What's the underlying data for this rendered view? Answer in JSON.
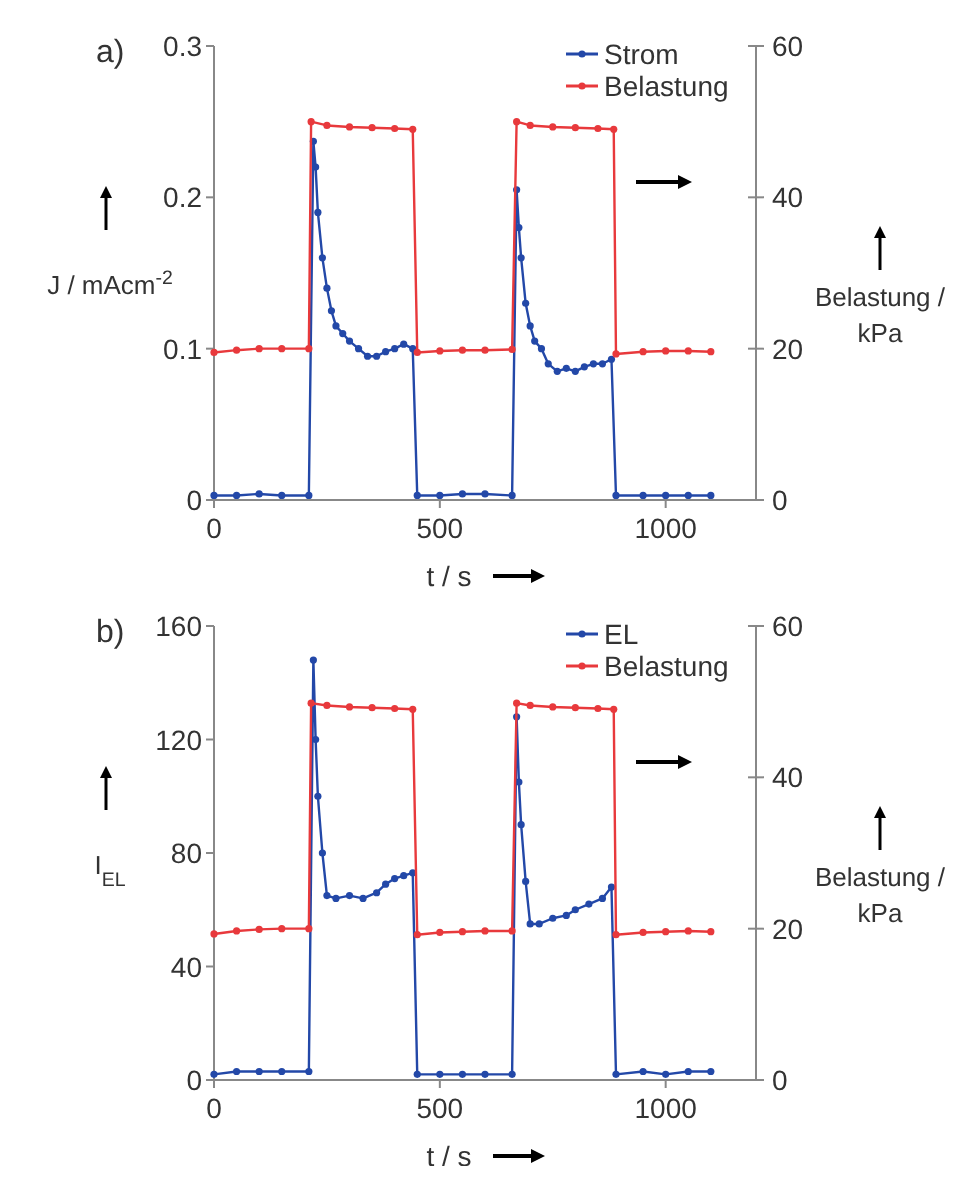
{
  "chart_data": [
    {
      "type": "line",
      "annotations": [
        "a)"
      ],
      "xlabel": "t / s",
      "ylabel": "J / mAcm$^{-2}$",
      "y2label": "Belastung / kPa",
      "xlim": [
        0,
        1200
      ],
      "xticks": [
        0,
        500,
        1000
      ],
      "ylim": [
        0,
        0.3
      ],
      "yticks": [
        0,
        0.1,
        0.2,
        0.3
      ],
      "y2lim": [
        0,
        60
      ],
      "y2ticks": [
        0,
        20,
        40,
        60
      ],
      "legend": "top right",
      "marker": "circle",
      "line_style": "solid",
      "grid": false,
      "series": [
        {
          "name": "Strom",
          "color": "#2348a8",
          "x": [
            0,
            50,
            100,
            150,
            210,
            220,
            225,
            230,
            240,
            250,
            260,
            270,
            285,
            300,
            320,
            340,
            360,
            380,
            400,
            420,
            440,
            450,
            500,
            550,
            600,
            660,
            670,
            675,
            680,
            690,
            700,
            710,
            725,
            740,
            760,
            780,
            800,
            820,
            840,
            860,
            880,
            890,
            950,
            1000,
            1050,
            1100
          ],
          "values": [
            0.003,
            0.003,
            0.004,
            0.003,
            0.003,
            0.237,
            0.22,
            0.19,
            0.16,
            0.14,
            0.125,
            0.115,
            0.11,
            0.105,
            0.1,
            0.095,
            0.095,
            0.098,
            0.1,
            0.103,
            0.1,
            0.003,
            0.003,
            0.004,
            0.004,
            0.003,
            0.205,
            0.18,
            0.16,
            0.13,
            0.115,
            0.105,
            0.1,
            0.09,
            0.085,
            0.087,
            0.085,
            0.088,
            0.09,
            0.09,
            0.093,
            0.003,
            0.003,
            0.003,
            0.003,
            0.003
          ]
        },
        {
          "name": "Belastung",
          "color": "#e8393c",
          "axis": "y2",
          "x": [
            0,
            50,
            100,
            150,
            210,
            215,
            250,
            300,
            350,
            400,
            440,
            450,
            500,
            550,
            600,
            660,
            670,
            700,
            750,
            800,
            850,
            885,
            890,
            950,
            1000,
            1050,
            1100
          ],
          "values": [
            19.5,
            19.8,
            20,
            20,
            20,
            50,
            49.5,
            49.3,
            49.2,
            49.1,
            49,
            19.5,
            19.7,
            19.8,
            19.8,
            19.9,
            50,
            49.5,
            49.3,
            49.2,
            49.1,
            49,
            19.3,
            19.6,
            19.7,
            19.7,
            19.6
          ]
        }
      ]
    },
    {
      "type": "line",
      "annotations": [
        "b)"
      ],
      "xlabel": "t / s",
      "ylabel": "I$_{EL}$",
      "y2label": "Belastung / kPa",
      "xlim": [
        0,
        1200
      ],
      "xticks": [
        0,
        500,
        1000
      ],
      "ylim": [
        0,
        160
      ],
      "yticks": [
        0,
        40,
        80,
        120,
        160
      ],
      "y2lim": [
        0,
        60
      ],
      "y2ticks": [
        0,
        20,
        40,
        60
      ],
      "legend": "top right",
      "marker": "circle",
      "line_style": "solid",
      "grid": false,
      "series": [
        {
          "name": "EL",
          "color": "#2348a8",
          "x": [
            0,
            50,
            100,
            150,
            210,
            220,
            225,
            230,
            240,
            250,
            270,
            300,
            330,
            360,
            380,
            400,
            420,
            440,
            450,
            500,
            550,
            600,
            660,
            670,
            675,
            680,
            690,
            700,
            720,
            750,
            780,
            800,
            830,
            860,
            880,
            890,
            950,
            1000,
            1050,
            1100
          ],
          "values": [
            2,
            3,
            3,
            3,
            3,
            148,
            120,
            100,
            80,
            65,
            64,
            65,
            64,
            66,
            69,
            71,
            72,
            73,
            2,
            2,
            2,
            2,
            2,
            128,
            105,
            90,
            70,
            55,
            55,
            57,
            58,
            60,
            62,
            64,
            68,
            2,
            3,
            2,
            3,
            3
          ]
        },
        {
          "name": "Belastung",
          "color": "#e8393c",
          "axis": "y2",
          "x": [
            0,
            50,
            100,
            150,
            210,
            215,
            250,
            300,
            350,
            400,
            440,
            450,
            500,
            550,
            600,
            660,
            670,
            700,
            750,
            800,
            850,
            885,
            890,
            950,
            1000,
            1050,
            1100
          ],
          "values": [
            19.3,
            19.7,
            19.9,
            20,
            20,
            49.8,
            49.5,
            49.3,
            49.2,
            49.1,
            49,
            19.2,
            19.5,
            19.6,
            19.7,
            19.7,
            49.8,
            49.5,
            49.3,
            49.2,
            49.1,
            49,
            19.2,
            19.5,
            19.6,
            19.7,
            19.6
          ]
        }
      ]
    }
  ]
}
